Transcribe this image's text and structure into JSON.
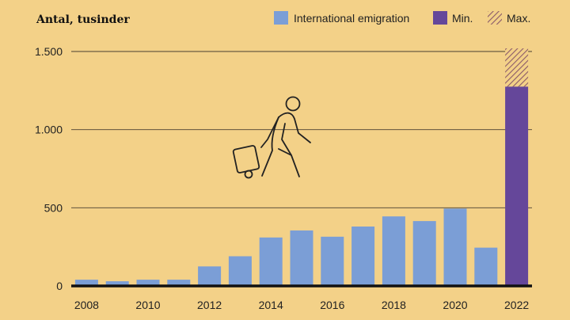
{
  "chart_data": {
    "type": "bar",
    "title": "Antal, tusinder",
    "xlabel": "",
    "ylabel": "Antal, tusinder",
    "ylim": [
      0,
      1500
    ],
    "y_ticks": [
      0,
      500,
      1000,
      1500
    ],
    "y_tick_labels": [
      "0",
      "500",
      "1.000",
      "1.500"
    ],
    "x_tick_labels": [
      "2008",
      "2010",
      "2012",
      "2014",
      "2016",
      "2018",
      "2020",
      "2022"
    ],
    "categories": [
      "2008",
      "2009",
      "2010",
      "2011",
      "2012",
      "2013",
      "2014",
      "2015",
      "2016",
      "2017",
      "2018",
      "2019",
      "2020",
      "2021",
      "2022"
    ],
    "series": [
      {
        "name": "International emigration",
        "color": "#7b9ed6",
        "values": [
          40,
          30,
          40,
          40,
          125,
          190,
          310,
          355,
          315,
          380,
          445,
          415,
          495,
          245,
          null
        ]
      },
      {
        "name": "Min.",
        "color": "#65479a",
        "values": [
          null,
          null,
          null,
          null,
          null,
          null,
          null,
          null,
          null,
          null,
          null,
          null,
          null,
          null,
          1275
        ]
      },
      {
        "name": "Max.",
        "color": "#8a5a6a",
        "pattern": "hatched",
        "values": [
          null,
          null,
          null,
          null,
          null,
          null,
          null,
          null,
          null,
          null,
          null,
          null,
          null,
          null,
          1520
        ]
      }
    ],
    "grid": true,
    "legend": {
      "position": "top-right",
      "entries": [
        "International emigration",
        "Min.",
        "Max."
      ]
    },
    "illustration_icon": "person-with-suitcase-icon"
  }
}
